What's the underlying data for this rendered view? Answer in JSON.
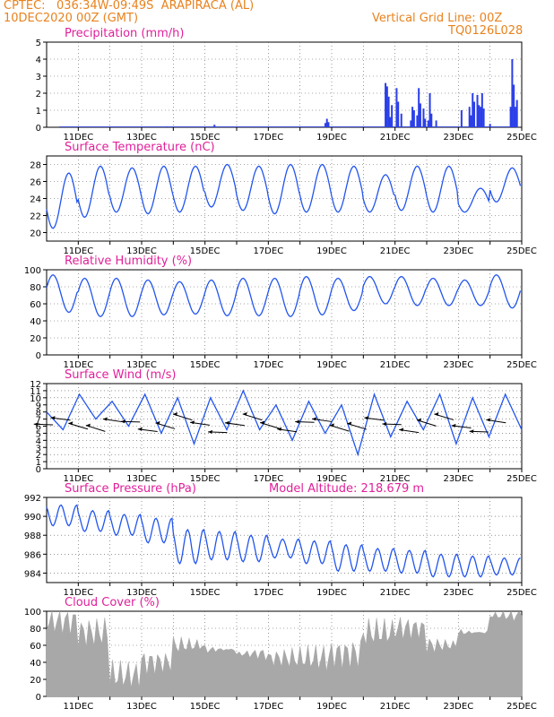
{
  "header": {
    "source": "CPTEC:",
    "location": "036:34W-09:49S",
    "city": "ARAPIRACA (AL)",
    "init_time": "10DEC2020 00Z (GMT)",
    "grid_note": "Vertical Grid Line: 00Z",
    "model_code": "TQ0126L028"
  },
  "colors": {
    "header": "#e8821e",
    "title": "#e0209a",
    "line": "#2255ee",
    "bar": "#2b3fe8",
    "cloud": "#a8a8a8"
  },
  "x_labels": [
    "11DEC",
    "13DEC",
    "15DEC",
    "17DEC",
    "19DEC",
    "21DEC",
    "23DEC",
    "25DEC"
  ],
  "chart_data": [
    {
      "type": "bar",
      "title": "Precipitation (mm/h)",
      "ylim": [
        0,
        5
      ],
      "yticks": [
        "0",
        "1",
        "2",
        "3",
        "4",
        "5"
      ],
      "x_range_days": [
        10,
        25
      ],
      "bars": [
        [
          13.8,
          0.05
        ],
        [
          15.3,
          0.15
        ],
        [
          18.8,
          0.25
        ],
        [
          18.85,
          0.5
        ],
        [
          18.9,
          0.3
        ],
        [
          20.7,
          2.6
        ],
        [
          20.75,
          2.4
        ],
        [
          20.8,
          1.8
        ],
        [
          20.85,
          0.6
        ],
        [
          20.9,
          1.3
        ],
        [
          21.05,
          2.3
        ],
        [
          21.1,
          1.5
        ],
        [
          21.2,
          0.8
        ],
        [
          21.5,
          0.4
        ],
        [
          21.55,
          1.2
        ],
        [
          21.6,
          1.0
        ],
        [
          21.7,
          0.7
        ],
        [
          21.75,
          2.3
        ],
        [
          21.8,
          1.4
        ],
        [
          21.9,
          1.1
        ],
        [
          21.95,
          0.5
        ],
        [
          22.05,
          0.4
        ],
        [
          22.1,
          2.0
        ],
        [
          22.15,
          0.8
        ],
        [
          22.3,
          0.4
        ],
        [
          23.1,
          1.0
        ],
        [
          23.35,
          1.2
        ],
        [
          23.4,
          0.7
        ],
        [
          23.45,
          2.0
        ],
        [
          23.5,
          1.5
        ],
        [
          23.6,
          1.9
        ],
        [
          23.65,
          1.3
        ],
        [
          23.7,
          1.2
        ],
        [
          23.75,
          2.0
        ],
        [
          23.8,
          1.1
        ],
        [
          24.0,
          0.2
        ],
        [
          24.65,
          1.2
        ],
        [
          24.7,
          4.0
        ],
        [
          24.75,
          2.5
        ],
        [
          24.8,
          1.2
        ],
        [
          24.85,
          1.6
        ]
      ]
    },
    {
      "type": "line",
      "title": "Surface Temperature (nC)",
      "ylim": [
        19,
        29
      ],
      "yticks": [
        "20",
        "22",
        "24",
        "26",
        "28"
      ],
      "x_range_days": [
        10,
        25
      ],
      "daily_max": [
        27.0,
        27.8,
        27.6,
        27.8,
        27.8,
        28.0,
        27.8,
        28.0,
        28.0,
        27.8,
        26.8,
        27.8,
        27.8,
        25.2,
        27.6
      ],
      "daily_min": [
        20.5,
        21.8,
        22.4,
        22.2,
        22.4,
        23.0,
        22.6,
        22.2,
        22.4,
        22.4,
        22.4,
        22.6,
        22.4,
        22.4,
        23.6
      ]
    },
    {
      "type": "line",
      "title": "Relative Humidity (%)",
      "ylim": [
        0,
        100
      ],
      "yticks": [
        "0",
        "20",
        "40",
        "60",
        "80",
        "100"
      ],
      "x_range_days": [
        10,
        25
      ],
      "daily_max": [
        94,
        90,
        90,
        88,
        86,
        88,
        90,
        90,
        92,
        90,
        92,
        92,
        90,
        88,
        94
      ],
      "daily_min": [
        50,
        45,
        45,
        47,
        48,
        46,
        46,
        45,
        47,
        52,
        60,
        58,
        58,
        58,
        55
      ]
    },
    {
      "type": "line",
      "title": "Surface Wind (m/s)",
      "ylim": [
        0,
        12
      ],
      "yticks": [
        "0",
        "1",
        "2",
        "3",
        "4",
        "5",
        "6",
        "7",
        "8",
        "9",
        "10",
        "11",
        "12"
      ],
      "x_range_days": [
        10,
        25
      ],
      "speed": [
        8.0,
        5.5,
        10.5,
        7.0,
        9.5,
        6.0,
        10.5,
        5.0,
        10.0,
        3.5,
        10.0,
        5.5,
        11.0,
        5.5,
        9.0,
        4.0,
        9.5,
        5.0,
        9.0,
        2.0,
        10.5,
        4.5,
        9.5,
        5.5,
        10.5,
        3.5,
        10.0,
        4.5,
        10.5,
        5.5
      ]
    },
    {
      "type": "line",
      "title": "Surface Pressure (hPa)",
      "annotation": "Model Altitude: 218.679 m",
      "ylim": [
        983,
        992
      ],
      "yticks": [
        "984",
        "986",
        "988",
        "990",
        "992"
      ],
      "x_range_days": [
        10,
        25
      ],
      "daily_max": [
        991.2,
        990.6,
        990.2,
        989.8,
        988.6,
        988.4,
        988.0,
        987.6,
        987.4,
        987.0,
        986.6,
        986.4,
        986.0,
        985.8,
        985.6
      ],
      "daily_min": [
        989.0,
        988.4,
        988.0,
        987.2,
        985.0,
        985.4,
        985.2,
        985.6,
        985.0,
        984.2,
        984.2,
        984.0,
        983.6,
        983.6,
        983.8
      ]
    },
    {
      "type": "area",
      "title": "Cloud Cover (%)",
      "ylim": [
        0,
        100
      ],
      "yticks": [
        "0",
        "20",
        "40",
        "60",
        "80",
        "100"
      ],
      "x_range_days": [
        10,
        25
      ],
      "daily_level": [
        88,
        75,
        25,
        40,
        60,
        55,
        50,
        45,
        45,
        50,
        75,
        80,
        60,
        75,
        95
      ]
    }
  ]
}
